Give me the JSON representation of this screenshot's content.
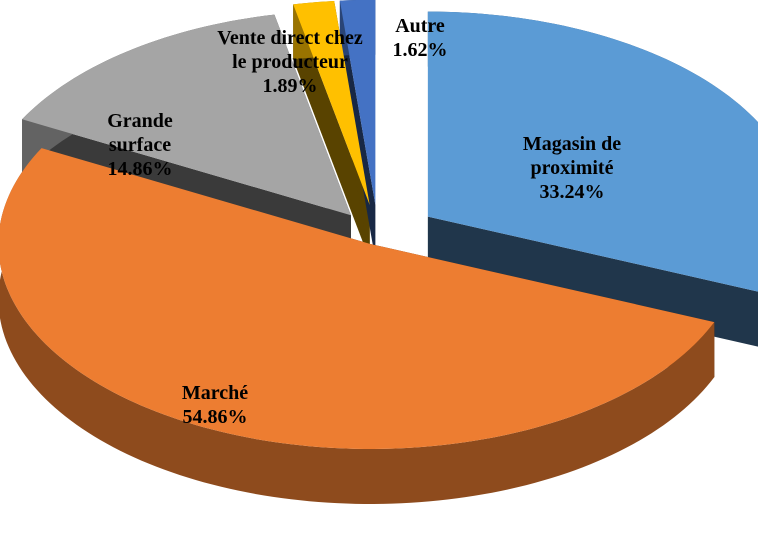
{
  "chart_data": {
    "type": "pie3d",
    "categories": [
      "Magasin de proximité",
      "Marché",
      "Grande surface",
      "Vente direct chez le producteur",
      "Autre"
    ],
    "values": [
      33.24,
      54.86,
      14.86,
      1.89,
      1.62
    ],
    "value_labels": [
      "33.24%",
      "54.86%",
      "14.86%",
      "1.89%",
      "1.62%"
    ],
    "colors": [
      "#5b9bd5",
      "#ed7d31",
      "#a5a5a5",
      "#ffc000",
      "#4472c4"
    ]
  }
}
